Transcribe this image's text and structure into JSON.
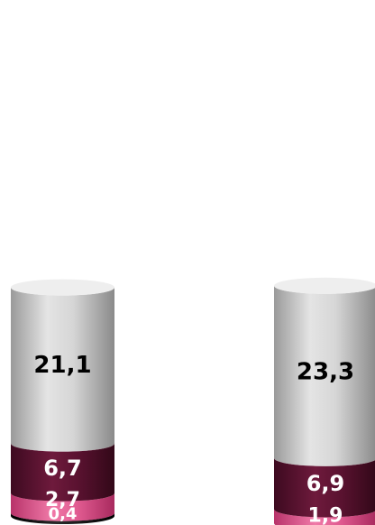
{
  "chart_data": {
    "type": "bar",
    "stacked": true,
    "style": "3d-cylinder",
    "categories": [
      "",
      ""
    ],
    "series": [
      {
        "values": [
          0.4,
          0
        ],
        "color": "#1a0a12",
        "label_color": "#ffffff"
      },
      {
        "values": [
          2.7,
          1.9
        ],
        "color": "#d84a82",
        "label_color": "#ffffff"
      },
      {
        "values": [
          6.7,
          6.9
        ],
        "color": "#5c1231",
        "label_color": "#ffffff"
      },
      {
        "values": [
          21.1,
          23.3
        ],
        "color": "#cfcfcf",
        "label_color": "#000000"
      }
    ],
    "data_labels": [
      [
        "0,4",
        ""
      ],
      [
        "2,7",
        "1,9"
      ],
      [
        "6,7",
        "6,9"
      ],
      [
        "21,1",
        "23,3"
      ]
    ],
    "grid": false,
    "legend": "none"
  }
}
